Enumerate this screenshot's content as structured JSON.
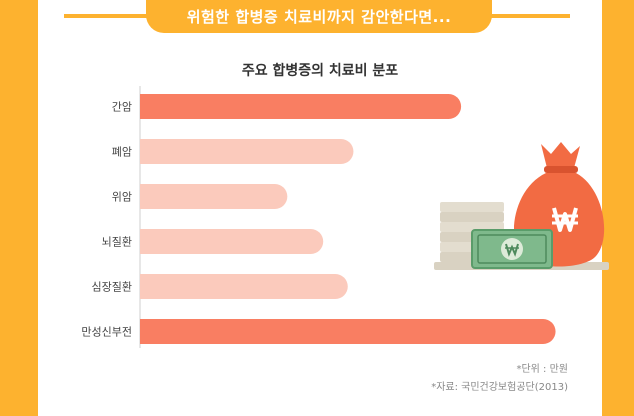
{
  "header": {
    "text": "위험한 합병증 치료비까지 감안한다면..."
  },
  "chart_data": {
    "type": "bar",
    "orientation": "horizontal",
    "title": "주요 합병증의 치료비 분포",
    "categories": [
      "간암",
      "폐암",
      "위암",
      "뇌질환",
      "심장질환",
      "만성신부전"
    ],
    "values": [
      1700,
      1130,
      780,
      970,
      1100,
      2200
    ],
    "xlim": [
      0,
      2250
    ],
    "grid": false,
    "colors": [
      "#F97E62",
      "#FBCABC",
      "#FBCABC",
      "#FBCABC",
      "#FBCABC",
      "#F97E62"
    ]
  },
  "notes": {
    "unit": "*단위 : 만원",
    "source": "*자료: 국민건강보험공단(2013)"
  },
  "colors": {
    "frame": "#FDB22F",
    "bar_highlight": "#F97E62",
    "bar_default": "#FBCABC",
    "money_bag": "#F26B43"
  },
  "icons": [
    "money-bag-icon",
    "won-banknote-icon",
    "coin-stack-icon"
  ]
}
